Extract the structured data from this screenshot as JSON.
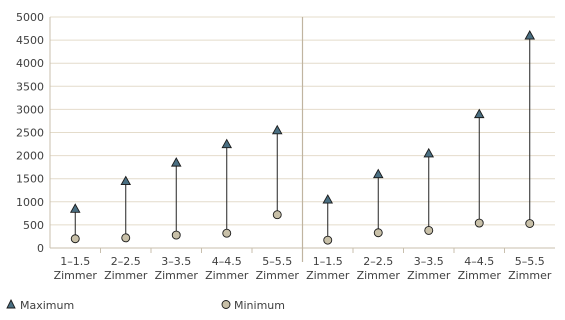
{
  "chart_data": {
    "type": "scatter",
    "y_ticks": [
      "0",
      "500",
      "1000",
      "1500",
      "2000",
      "2500",
      "3000",
      "3500",
      "4000",
      "4500",
      "5000"
    ],
    "ylim": [
      0,
      5000
    ],
    "grid": true,
    "legend_position": "bottom-left",
    "groups": [
      {
        "categories": [
          [
            "1–1.5",
            "Zimmer"
          ],
          [
            "2–2.5",
            "Zimmer"
          ],
          [
            "3–3.5",
            "Zimmer"
          ],
          [
            "4–4.5",
            "Zimmer"
          ],
          [
            "5–5.5",
            "Zimmer"
          ]
        ],
        "maximum": [
          850,
          1450,
          1850,
          2250,
          2550
        ],
        "minimum": [
          200,
          220,
          280,
          320,
          720
        ]
      },
      {
        "categories": [
          [
            "1–1.5",
            "Zimmer"
          ],
          [
            "2–2.5",
            "Zimmer"
          ],
          [
            "3–3.5",
            "Zimmer"
          ],
          [
            "4–4.5",
            "Zimmer"
          ],
          [
            "5–5.5",
            "Zimmer"
          ]
        ],
        "maximum": [
          1050,
          1600,
          2050,
          2900,
          4600
        ],
        "minimum": [
          170,
          330,
          380,
          540,
          530
        ]
      }
    ],
    "series": [
      {
        "name": "Maximum",
        "marker": "triangle",
        "color": "#4a6f82"
      },
      {
        "name": "Minimum",
        "marker": "circle",
        "color": "#c8c0a8"
      }
    ],
    "colors": {
      "grid": "#e4dccb",
      "axis": "#c8bfae",
      "divider": "#c0b4a0",
      "connector": "#222222",
      "marker_stroke": "#1a1a1a"
    }
  }
}
